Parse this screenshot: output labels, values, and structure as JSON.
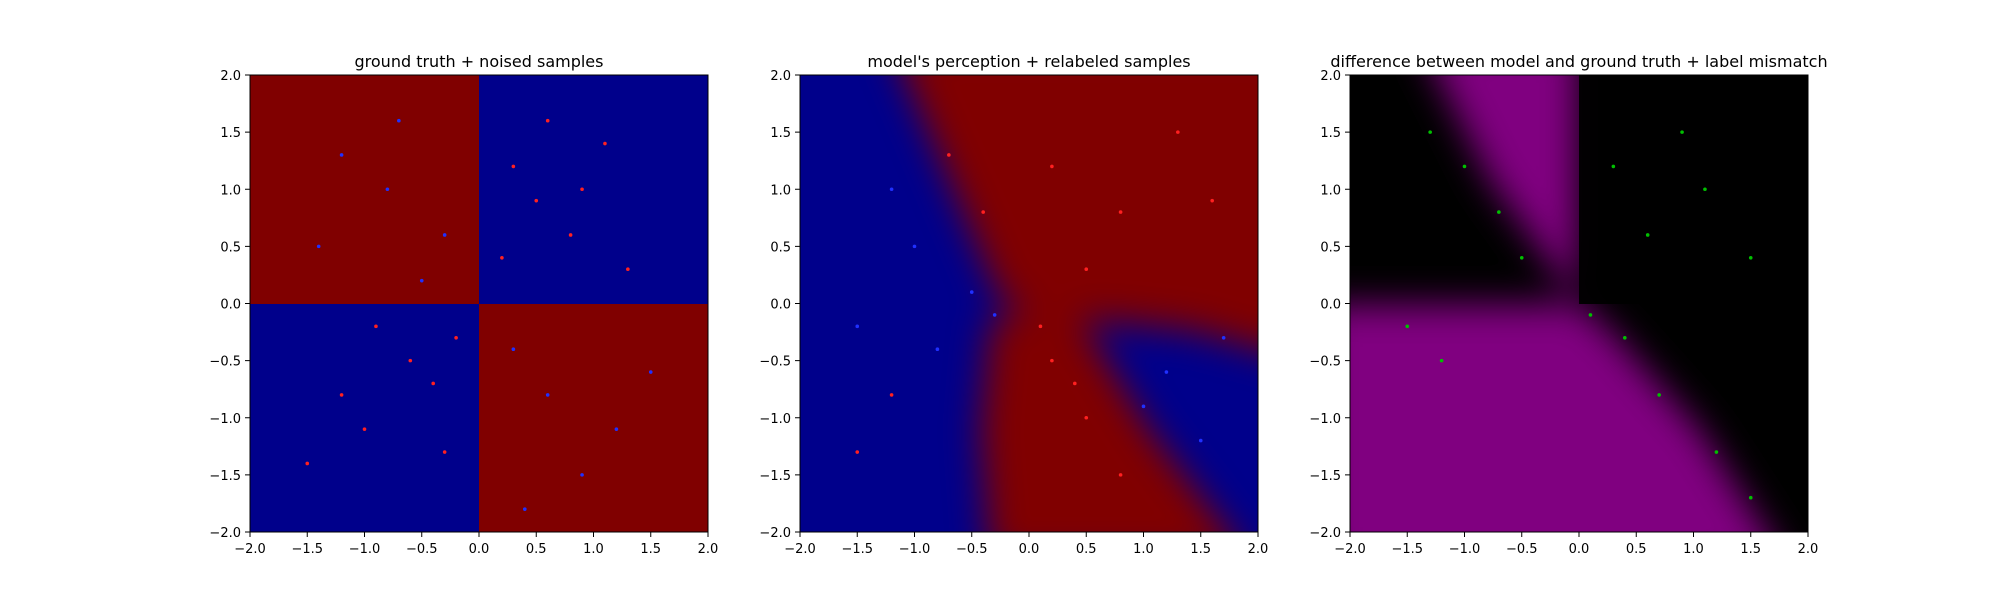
{
  "colors": {
    "class_a_bg": "#800000",
    "class_b_bg": "#00008b",
    "point_red": "#ff0000",
    "point_blue": "#0000ff",
    "diff_bg": "#000000",
    "diff_mismatch": "#800080",
    "point_green": "#00c000"
  },
  "chart_data": [
    {
      "type": "scatter",
      "title": "ground truth + noised samples",
      "xlabel": "",
      "ylabel": "",
      "xlim": [
        -2.0,
        2.0
      ],
      "ylim": [
        -2.0,
        2.0
      ],
      "xticks": [
        "−2.0",
        "−1.5",
        "−1.0",
        "−0.5",
        "0.0",
        "0.5",
        "1.0",
        "1.5",
        "2.0"
      ],
      "yticks": [
        "2.0",
        "1.5",
        "1.0",
        "0.5",
        "0.0",
        "−0.5",
        "−1.0",
        "−1.5",
        "−2.0"
      ],
      "background": "XOR-style quadrant map: dark red in top-left and bottom-right, dark blue in top-right and bottom-left",
      "series": [
        {
          "color": "red",
          "points": [
            [
              0.3,
              1.2
            ],
            [
              0.5,
              0.9
            ],
            [
              0.8,
              0.6
            ],
            [
              1.1,
              1.4
            ],
            [
              0.2,
              0.4
            ],
            [
              0.6,
              1.6
            ],
            [
              1.3,
              0.3
            ],
            [
              0.9,
              1.0
            ],
            [
              -0.6,
              -0.5
            ],
            [
              -1.2,
              -0.8
            ],
            [
              -0.3,
              -1.3
            ],
            [
              -0.9,
              -0.2
            ],
            [
              -1.5,
              -1.4
            ],
            [
              -0.4,
              -0.7
            ],
            [
              -1.0,
              -1.1
            ],
            [
              -0.2,
              -0.3
            ]
          ]
        },
        {
          "color": "blue",
          "points": [
            [
              -0.8,
              1.0
            ],
            [
              -0.3,
              0.6
            ],
            [
              -1.2,
              1.3
            ],
            [
              -0.5,
              0.2
            ],
            [
              -1.4,
              0.5
            ],
            [
              0.6,
              -0.8
            ],
            [
              1.2,
              -1.1
            ],
            [
              0.3,
              -0.4
            ],
            [
              1.5,
              -0.6
            ],
            [
              0.9,
              -1.5
            ],
            [
              -0.7,
              1.6
            ],
            [
              0.4,
              -1.8
            ]
          ]
        }
      ]
    },
    {
      "type": "scatter",
      "title": "model's perception + relabeled samples",
      "xlabel": "",
      "ylabel": "",
      "xlim": [
        -2.0,
        2.0
      ],
      "ylim": [
        -2.0,
        2.0
      ],
      "xticks": [
        "−2.0",
        "−1.5",
        "−1.0",
        "−0.5",
        "0.0",
        "0.5",
        "1.0",
        "1.5",
        "2.0"
      ],
      "yticks": [
        "2.0",
        "1.5",
        "1.0",
        "0.5",
        "0.0",
        "−0.5",
        "−1.0",
        "−1.5",
        "−2.0"
      ],
      "background": "diagonal decision regions: blue left and lower-right, red upper-right band and lower-middle band",
      "series": [
        {
          "color": "red",
          "points": [
            [
              0.2,
              1.2
            ],
            [
              0.8,
              0.8
            ],
            [
              1.3,
              1.5
            ],
            [
              0.5,
              0.3
            ],
            [
              1.6,
              0.9
            ],
            [
              -0.7,
              1.3
            ],
            [
              -0.4,
              0.8
            ],
            [
              0.2,
              -0.5
            ],
            [
              0.5,
              -1.0
            ],
            [
              0.8,
              -1.5
            ],
            [
              0.1,
              -0.2
            ],
            [
              -1.2,
              -0.8
            ],
            [
              -1.5,
              -1.3
            ],
            [
              0.4,
              -0.7
            ]
          ]
        },
        {
          "color": "blue",
          "points": [
            [
              -1.0,
              0.5
            ],
            [
              -1.5,
              -0.2
            ],
            [
              -0.5,
              0.1
            ],
            [
              -1.2,
              1.0
            ],
            [
              1.2,
              -0.6
            ],
            [
              1.5,
              -1.2
            ],
            [
              1.7,
              -0.3
            ],
            [
              -0.8,
              -0.4
            ],
            [
              -0.3,
              -0.1
            ],
            [
              1.0,
              -0.9
            ]
          ]
        }
      ]
    },
    {
      "type": "scatter",
      "title": "difference between model and ground truth + label mismatch",
      "xlabel": "",
      "ylabel": "",
      "xlim": [
        -2.0,
        2.0
      ],
      "ylim": [
        -2.0,
        2.0
      ],
      "xticks": [
        "−2.0",
        "−1.5",
        "−1.0",
        "−0.5",
        "0.0",
        "0.5",
        "1.0",
        "1.5",
        "2.0"
      ],
      "yticks": [
        "2.0",
        "1.5",
        "1.0",
        "0.5",
        "0.0",
        "−0.5",
        "−1.0",
        "−1.5",
        "−2.0"
      ],
      "background": "black where model agrees with ground truth, purple where they differ",
      "series": [
        {
          "color": "green",
          "points": [
            [
              -1.0,
              1.2
            ],
            [
              -0.7,
              0.8
            ],
            [
              -0.5,
              0.4
            ],
            [
              -1.3,
              1.5
            ],
            [
              0.3,
              1.2
            ],
            [
              0.6,
              0.6
            ],
            [
              1.1,
              1.0
            ],
            [
              1.5,
              0.4
            ],
            [
              0.4,
              -0.3
            ],
            [
              0.7,
              -0.8
            ],
            [
              1.2,
              -1.3
            ],
            [
              1.5,
              -1.7
            ],
            [
              -1.5,
              -0.2
            ],
            [
              -1.2,
              -0.5
            ],
            [
              0.1,
              -0.1
            ],
            [
              0.9,
              1.5
            ]
          ]
        }
      ]
    }
  ]
}
